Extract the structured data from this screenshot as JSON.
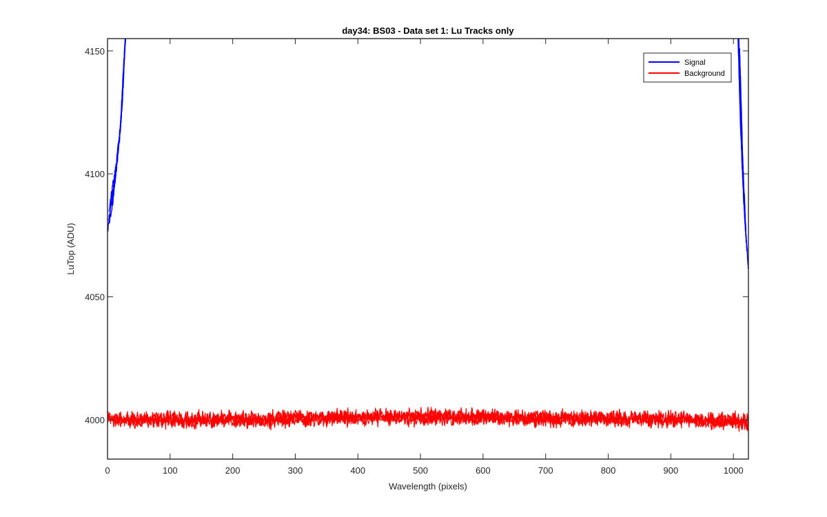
{
  "chart_data": {
    "type": "line",
    "title": "day34: BS03 - Data set 1: Lu Tracks only",
    "xlabel": "Wavelength (pixels)",
    "ylabel": "LuTop (ADU)",
    "xlim": [
      0,
      1024
    ],
    "ylim": [
      3984,
      4155
    ],
    "x_ticks": [
      0,
      100,
      200,
      300,
      400,
      500,
      600,
      700,
      800,
      900,
      1000
    ],
    "y_ticks": [
      4000,
      4050,
      4100,
      4150
    ],
    "grid": false,
    "legend_position": "top-right",
    "colors": {
      "Signal": "#0000ff",
      "Background": "#ff0000"
    },
    "series": [
      {
        "name": "Signal",
        "segment": "left edge",
        "description_values": {
          "x": [
            0,
            10,
            20,
            27
          ],
          "y": [
            4080,
            4095,
            4120,
            4155
          ]
        }
      },
      {
        "name": "Signal",
        "segment": "right edge",
        "description_values": {
          "x": [
            1010,
            1015,
            1020,
            1024
          ],
          "y": [
            4155,
            4110,
            4080,
            4065
          ]
        }
      },
      {
        "name": "Background",
        "description_values": {
          "x": [
            0,
            100,
            200,
            300,
            400,
            500,
            600,
            700,
            800,
            900,
            1000,
            1024
          ],
          "y": [
            4000,
            4000,
            4000,
            4000.5,
            4001,
            4001,
            4001,
            4000.5,
            4000.5,
            4000,
            3999.5,
            3999
          ]
        }
      }
    ]
  },
  "legend": [
    {
      "label": "Signal",
      "color": "#0000ff"
    },
    {
      "label": "Background",
      "color": "#ff0000"
    }
  ]
}
